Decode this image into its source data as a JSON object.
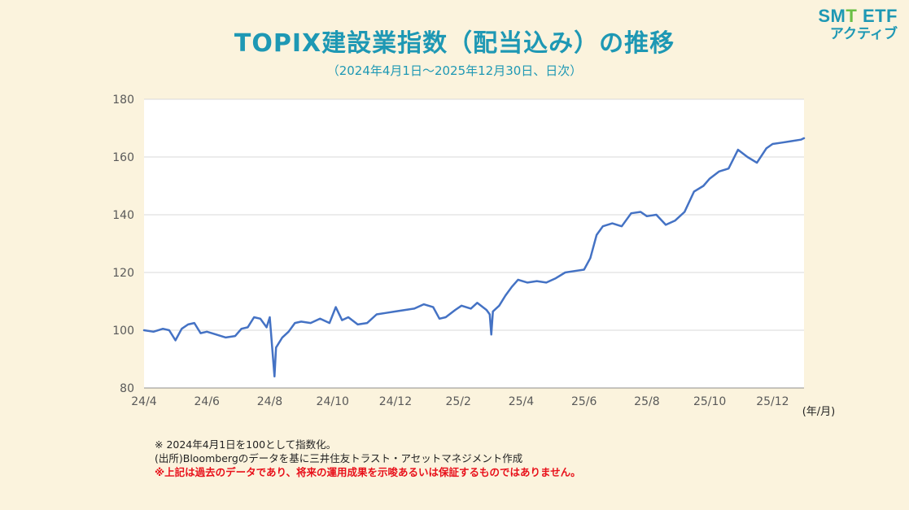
{
  "header": {
    "title": "TOPIX建設業指数（配当込み）の推移",
    "subtitle": "（2024年4月1日～2025年12月30日、日次）"
  },
  "logo": {
    "line1_a": "SM",
    "line1_b": "T",
    "line1_c": " ETF",
    "line2": "アクティブ"
  },
  "notes": {
    "note1": "※ 2024年4月1日を100として指数化。",
    "note2": "(出所)Bloombergのデータを基に三井住友トラスト・アセットマネジメント作成",
    "note3": "※上記は過去のデータであり、将来の運用成果を示唆あるいは保証するものではありません。"
  },
  "colors": {
    "line": "#4472c4",
    "title": "#1e98b4",
    "warning": "#e8101a",
    "background": "#fbf3dd",
    "plot_background": "#ffffff",
    "grid": "#d9d9d9"
  },
  "chart_data": {
    "type": "line",
    "title": "TOPIX建設業指数（配当込み）の推移",
    "xlabel": "(年/月)",
    "ylabel": "",
    "ylim": [
      80,
      180
    ],
    "yticks": [
      80,
      100,
      120,
      140,
      160,
      180
    ],
    "grid": true,
    "x_tick_labels": [
      "24/4",
      "24/6",
      "24/8",
      "24/10",
      "24/12",
      "25/2",
      "25/4",
      "25/6",
      "25/8",
      "25/10",
      "25/12"
    ],
    "x_range_months": [
      0,
      21
    ],
    "series": [
      {
        "x": [
          0,
          0.3,
          0.6,
          0.8,
          1.0,
          1.2,
          1.4,
          1.6,
          1.8,
          2.0,
          2.3,
          2.6,
          2.9,
          3.1,
          3.3,
          3.5,
          3.7,
          3.9,
          4.0,
          4.1,
          4.15,
          4.2,
          4.4,
          4.6,
          4.8,
          5.0,
          5.3,
          5.6,
          5.9,
          6.1,
          6.3,
          6.5,
          6.8,
          7.1,
          7.4,
          7.7,
          8.0,
          8.3,
          8.6,
          8.9,
          9.2,
          9.4,
          9.6,
          9.9,
          10.1,
          10.4,
          10.6,
          10.9,
          11.0,
          11.05,
          11.1,
          11.3,
          11.5,
          11.7,
          11.9,
          12.2,
          12.5,
          12.8,
          13.1,
          13.4,
          13.7,
          14.0,
          14.2,
          14.4,
          14.6,
          14.9,
          15.2,
          15.5,
          15.8,
          16.0,
          16.3,
          16.6,
          16.9,
          17.2,
          17.5,
          17.8,
          18.0,
          18.3,
          18.6,
          18.9,
          19.2,
          19.5,
          19.8,
          20.0,
          20.3,
          20.6,
          20.9,
          21.0
        ],
        "values": [
          100,
          99.5,
          100.5,
          100,
          96.5,
          100.5,
          102,
          102.5,
          99,
          99.5,
          98.5,
          97.5,
          98,
          100.5,
          101,
          104.5,
          104,
          101,
          104.5,
          91,
          84,
          94,
          97.5,
          99.5,
          102.5,
          103,
          102.5,
          104,
          102.5,
          108,
          103.5,
          104.5,
          102,
          102.5,
          105.5,
          106,
          106.5,
          107,
          107.5,
          109,
          108,
          104,
          104.5,
          107,
          108.5,
          107.5,
          109.5,
          107,
          105.5,
          98.5,
          106.5,
          108.5,
          112,
          115,
          117.5,
          116.5,
          117,
          116.5,
          118,
          120,
          120.5,
          121,
          125,
          133,
          136,
          137,
          136,
          140.5,
          141,
          139.5,
          140,
          136.5,
          138,
          141,
          148,
          150,
          152.5,
          155,
          156,
          162.5,
          160,
          158,
          163,
          164.5,
          165,
          165.5,
          166,
          166.5
        ],
        "label": ""
      }
    ]
  }
}
